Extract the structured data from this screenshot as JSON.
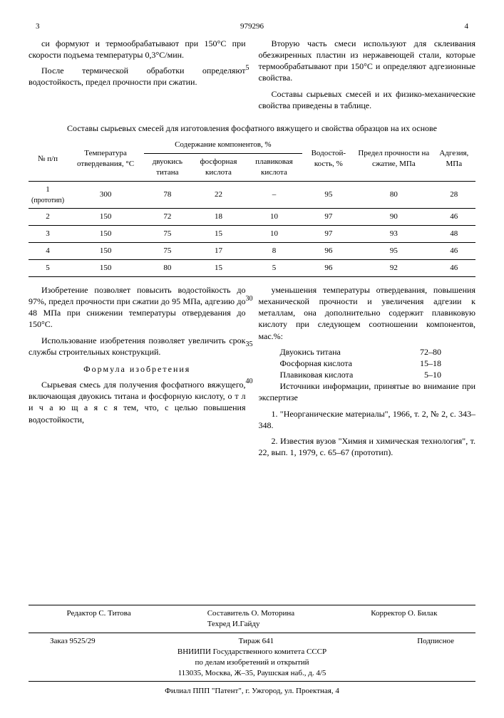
{
  "header": {
    "doc_number": "979296",
    "page_left": "3",
    "page_right": "4"
  },
  "top_left": {
    "p1": "си формуют и термообрабатывают при 150°С при скорости подъема температуры 0,3°С/мин.",
    "p2": "После термической обработки определяют водостойкость, предел прочности при сжатии."
  },
  "top_right": {
    "p1": "Вторую часть смеси используют для склеивания обезжиренных пластин из нержавеющей стали, которые термообрабатывают при 150°С и определяют адгезионные свойства.",
    "p2": "Составы сырьевых смесей и их физико-механические свойства приведены в таблице."
  },
  "table": {
    "caption": "Составы сырьевых смесей для изготовления фосфатного вяжущего и свойства образцов на их основе",
    "head": {
      "c1": "№ п/п",
      "c2": "Температура отвердевания, °С",
      "c3_group": "Содержание компонентов, %",
      "c3a": "двуокись титана",
      "c3b": "фосфорная кислота",
      "c3c": "плавиковая кислота",
      "c4": "Водостой-кость, %",
      "c5": "Предел прочности на сжатие, МПа",
      "c6": "Адгезия, МПа"
    },
    "rows": [
      {
        "n": "1",
        "proto": "(прототип)",
        "t": "300",
        "a": "78",
        "b": "22",
        "c": "–",
        "w": "95",
        "p": "80",
        "ad": "28"
      },
      {
        "n": "2",
        "proto": "",
        "t": "150",
        "a": "72",
        "b": "18",
        "c": "10",
        "w": "97",
        "p": "90",
        "ad": "46"
      },
      {
        "n": "3",
        "proto": "",
        "t": "150",
        "a": "75",
        "b": "15",
        "c": "10",
        "w": "97",
        "p": "93",
        "ad": "48"
      },
      {
        "n": "4",
        "proto": "",
        "t": "150",
        "a": "75",
        "b": "17",
        "c": "8",
        "w": "96",
        "p": "95",
        "ad": "46"
      },
      {
        "n": "5",
        "proto": "",
        "t": "150",
        "a": "80",
        "b": "15",
        "c": "5",
        "w": "96",
        "p": "92",
        "ad": "46"
      }
    ]
  },
  "bottom_left": {
    "p1": "Изобретение позволяет повысить водостойкость до 97%, предел прочности при сжатии до 95 МПа, адгезию до 48 МПа при снижении температуры отвердевания до 150°С.",
    "p2": "Использование изобретения позволяет увеличить срок службы строительных конструкций.",
    "heading": "Формула изобретения",
    "p3": "Сырьевая смесь для получения фосфатного вяжущего, включающая двуокись титана и фосфорную кислоту, о т л и ч а ю щ а я с я тем, что, с целью повышения водостойкости,"
  },
  "bottom_right": {
    "p1": "уменьшения температуры отвердевания, повышения механической прочности и увеличения адгезии к металлам, она дополнительно содержит плавиковую кислоту при следующем соотношении компонентов, мас.%:",
    "ratios": [
      {
        "name": "Двуокись титана",
        "val": "72–80"
      },
      {
        "name": "Фосфорная кислота",
        "val": "15–18"
      },
      {
        "name": "Плавиковая кислота",
        "val": "5–10"
      }
    ],
    "src_heading": "Источники информации, принятые во внимание при экспертизе",
    "src1": "1. \"Неорганические материалы\", 1966, т. 2, № 2, с. 343–348.",
    "src2": "2. Известия вузов \"Химия и химическая технология\", т. 22, вып. 1, 1979, с. 65–67 (прототип)."
  },
  "line_markers": {
    "m5": "5",
    "m30": "30",
    "m35": "35",
    "m40": "40"
  },
  "footer": {
    "compiler": "Составитель О. Моторина",
    "editor": "Редактор С. Титова",
    "tech": "Техред И.Гайду",
    "corrector": "Корректор О. Билак",
    "order": "Заказ 9525/29",
    "tirazh": "Тираж 641",
    "sign": "Подписное",
    "org1": "ВНИИПИ Государственного комитета СССР",
    "org2": "по делам изобретений и открытий",
    "org3": "113035, Москва, Ж–35, Раушская наб., д. 4/5",
    "branch": "Филиал ППП \"Патент\", г. Ужгород, ул. Проектная, 4"
  }
}
